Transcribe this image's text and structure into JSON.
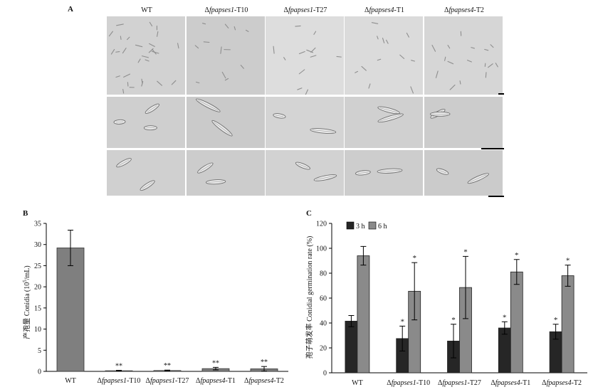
{
  "panelA": {
    "letter": "A",
    "columns": [
      {
        "prefix": "",
        "italic": "",
        "suffix": "WT"
      },
      {
        "prefix": "Δ",
        "italic": "fpapses1",
        "suffix": "-T10"
      },
      {
        "prefix": "Δ",
        "italic": "fpapses1",
        "suffix": "-T27"
      },
      {
        "prefix": "Δ",
        "italic": "fpapses4",
        "suffix": "-T1"
      },
      {
        "prefix": "Δ",
        "italic": "fpapses4",
        "suffix": "-T2"
      }
    ]
  },
  "panelB": {
    "letter": "B",
    "ylabel_cn": "产孢量",
    "ylabel_en_pre": "Conidia (10",
    "ylabel_en_sup": "5",
    "ylabel_en_post": "/mL)"
  },
  "panelC": {
    "letter": "C",
    "ylabel_cn": "孢子萌发率",
    "ylabel_en": "Conidial germination rate (%)",
    "legend": [
      "3 h",
      "6 h"
    ]
  },
  "categories": [
    {
      "prefix": "",
      "italic": "",
      "suffix": "WT"
    },
    {
      "prefix": "Δ",
      "italic": "fpapses1",
      "suffix": "-T10"
    },
    {
      "prefix": "Δ",
      "italic": "fpapses1",
      "suffix": "-T27"
    },
    {
      "prefix": "Δ",
      "italic": "fpapses4",
      "suffix": "-T1"
    },
    {
      "prefix": "Δ",
      "italic": "fpapses4",
      "suffix": "-T2"
    }
  ],
  "chart_data": [
    {
      "type": "bar",
      "title": "",
      "ylabel": "产孢量 Conidia (10^5/mL)",
      "ylim": [
        0,
        35
      ],
      "yticks": [
        0,
        5,
        10,
        15,
        20,
        25,
        30,
        35
      ],
      "values": [
        29.2,
        0.15,
        0.2,
        0.65,
        0.6
      ],
      "errors": [
        4.2,
        0.1,
        0.1,
        0.3,
        0.55
      ],
      "significance": [
        "",
        "**",
        "**",
        "**",
        "**"
      ],
      "color": "#7f7f7f"
    },
    {
      "type": "bar",
      "title": "",
      "ylabel": "孢子萌发率 Conidial germination rate (%)",
      "ylim": [
        0,
        120
      ],
      "yticks": [
        0,
        20,
        40,
        60,
        80,
        100,
        120
      ],
      "series": [
        {
          "name": "3 h",
          "color": "#262626",
          "values": [
            41.5,
            27.5,
            25.5,
            36,
            33
          ],
          "errors": [
            4.5,
            10,
            13.5,
            5,
            6
          ],
          "significance": [
            "",
            "*",
            "*",
            "*",
            "*"
          ]
        },
        {
          "name": "6 h",
          "color": "#8a8a8a",
          "values": [
            94,
            65.5,
            68.5,
            81,
            78
          ],
          "errors": [
            7.5,
            23,
            25,
            10,
            8.5
          ],
          "significance": [
            "",
            "*",
            "*",
            "*",
            "*"
          ]
        }
      ]
    }
  ]
}
